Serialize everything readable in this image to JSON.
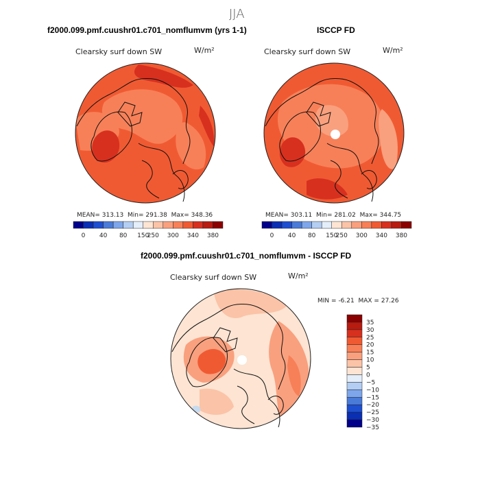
{
  "figure": {
    "season": "JJA",
    "colors": {
      "dark_red": "#8b0000",
      "red": "#d7301f",
      "orange_red": "#f05a32",
      "orange": "#f98a5e",
      "peach": "#fbbd9d",
      "pale": "#fde4d3",
      "light_blue": "#c6dbef",
      "blue": "#4a7bd8",
      "navy": "#00008b",
      "coast": "#111111"
    }
  },
  "chart_data": [
    {
      "type": "heatmap",
      "projection": "north polar stereographic",
      "title": "f2000.099.pmf.cuushr01.c701_nomflumvm (yrs 1-1)",
      "variable": "Clearsky surf down SW",
      "units": "W/m²",
      "stats": {
        "mean": "313.13",
        "min": "291.38",
        "max": "348.36"
      },
      "stats_labels": {
        "mean": "MEAN=",
        "min": "Min=",
        "max": "Max="
      },
      "colorbar": {
        "orientation": "horizontal",
        "tick_labels": [
          "0",
          "40",
          "80",
          "150",
          "250",
          "300",
          "340",
          "380"
        ],
        "colors": [
          "#00008b",
          "#0a2fb4",
          "#1e4fd0",
          "#4a7bd8",
          "#7ea6ea",
          "#b3cdf3",
          "#e4eefb",
          "#fde4d3",
          "#fbc3a7",
          "#f9a07e",
          "#f78058",
          "#f05a32",
          "#d7301f",
          "#b81b10",
          "#8b0000"
        ]
      }
    },
    {
      "type": "heatmap",
      "projection": "north polar stereographic",
      "title": "ISCCP FD",
      "variable": "Clearsky surf down SW",
      "units": "W/m²",
      "stats": {
        "mean": "303.11",
        "min": "281.02",
        "max": "344.75"
      },
      "stats_labels": {
        "mean": "MEAN=",
        "min": "Min=",
        "max": "Max="
      },
      "colorbar": {
        "orientation": "horizontal",
        "tick_labels": [
          "0",
          "40",
          "80",
          "150",
          "250",
          "300",
          "340",
          "380"
        ],
        "colors": [
          "#00008b",
          "#0a2fb4",
          "#1e4fd0",
          "#4a7bd8",
          "#7ea6ea",
          "#b3cdf3",
          "#e4eefb",
          "#fde4d3",
          "#fbc3a7",
          "#f9a07e",
          "#f78058",
          "#f05a32",
          "#d7301f",
          "#b81b10",
          "#8b0000"
        ]
      }
    },
    {
      "type": "heatmap",
      "projection": "north polar stereographic",
      "title": "f2000.099.pmf.cuushr01.c701_nomflumvm - ISCCP FD",
      "variable": "Clearsky surf down SW",
      "units": "W/m²",
      "stats": {
        "min": "-6.21",
        "max": "27.26"
      },
      "stats_labels": {
        "min": "MIN =",
        "max": "MAX ="
      },
      "colorbar": {
        "orientation": "vertical",
        "tick_labels": [
          "35",
          "30",
          "25",
          "20",
          "15",
          "10",
          "5",
          "0",
          "−5",
          "−10",
          "−15",
          "−20",
          "−25",
          "−30",
          "−35"
        ],
        "colors": [
          "#8b0000",
          "#b81b10",
          "#d7301f",
          "#f05a32",
          "#f78058",
          "#f9a07e",
          "#fbc3a7",
          "#fde4d3",
          "#e4eefb",
          "#b3cdf3",
          "#7ea6ea",
          "#4a7bd8",
          "#1e4fd0",
          "#0a2fb4",
          "#00008b"
        ]
      }
    }
  ]
}
